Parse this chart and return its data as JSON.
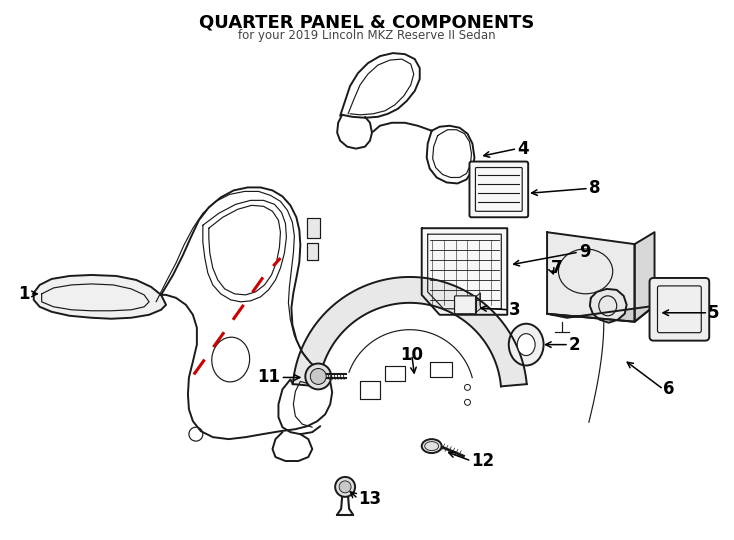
{
  "title": "QUARTER PANEL & COMPONENTS",
  "subtitle": "for your 2019 Lincoln MKZ Reserve II Sedan",
  "background_color": "#ffffff",
  "line_color": "#1a1a1a",
  "red_dashed_color": "#cc0000",
  "fig_width": 7.34,
  "fig_height": 5.4
}
